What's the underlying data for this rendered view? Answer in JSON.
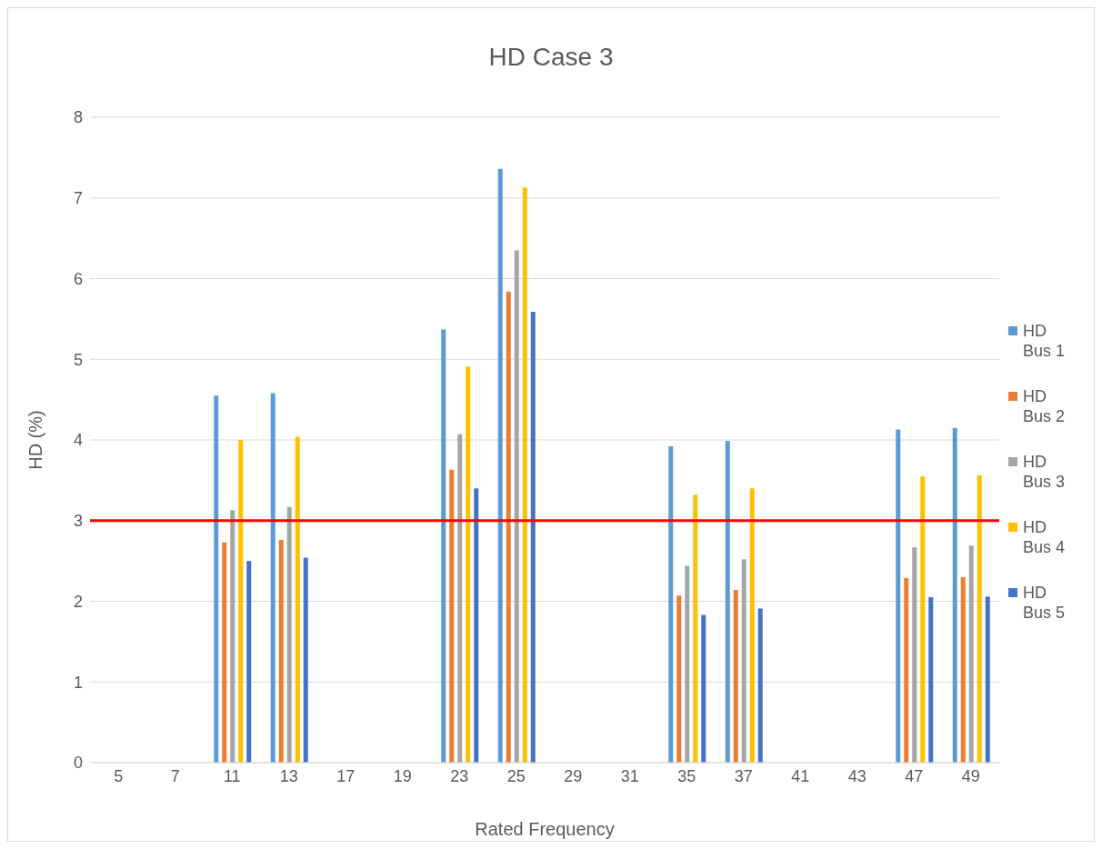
{
  "chart_data": {
    "type": "bar",
    "title": "HD Case 3",
    "xlabel": "Rated Frequency",
    "ylabel": "HD (%)",
    "categories": [
      "5",
      "7",
      "11",
      "13",
      "17",
      "19",
      "23",
      "25",
      "29",
      "31",
      "35",
      "37",
      "41",
      "43",
      "47",
      "49"
    ],
    "series": [
      {
        "name": "HD Bus 1",
        "color": "#5b9bd5",
        "values": [
          0,
          0,
          4.55,
          4.58,
          0,
          0,
          5.37,
          7.36,
          0,
          0,
          3.92,
          3.99,
          0,
          0,
          4.13,
          4.15
        ]
      },
      {
        "name": "HD Bus 2",
        "color": "#ed7d31",
        "values": [
          0,
          0,
          2.73,
          2.76,
          0,
          0,
          3.63,
          5.84,
          0,
          0,
          2.07,
          2.14,
          0,
          0,
          2.29,
          2.3
        ]
      },
      {
        "name": "HD Bus 3",
        "color": "#a5a5a5",
        "values": [
          0,
          0,
          3.13,
          3.17,
          0,
          0,
          4.07,
          6.35,
          0,
          0,
          2.44,
          2.52,
          0,
          0,
          2.67,
          2.69
        ]
      },
      {
        "name": "HD Bus 4",
        "color": "#ffc000",
        "values": [
          0,
          0,
          4.0,
          4.04,
          0,
          0,
          4.91,
          7.13,
          0,
          0,
          3.32,
          3.4,
          0,
          0,
          3.55,
          3.56
        ]
      },
      {
        "name": "HD Bus 5",
        "color": "#4472c4",
        "values": [
          0,
          0,
          2.5,
          2.54,
          0,
          0,
          3.4,
          5.59,
          0,
          0,
          1.83,
          1.91,
          0,
          0,
          2.05,
          2.06
        ]
      }
    ],
    "ylim": [
      0,
      8
    ],
    "yticks": [
      0,
      1,
      2,
      3,
      4,
      5,
      6,
      7,
      8
    ],
    "grid": "y",
    "legend": "right",
    "ref_lines": [
      {
        "axis": "y",
        "value": 3,
        "color": "#ff0000"
      }
    ]
  }
}
